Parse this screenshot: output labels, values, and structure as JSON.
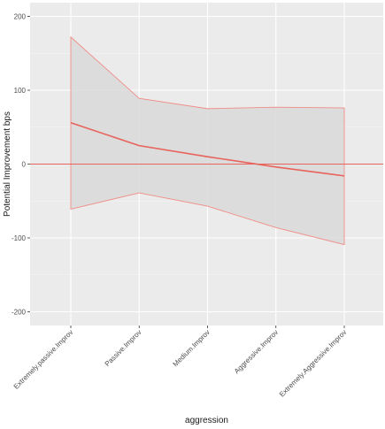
{
  "chart_data": {
    "type": "line",
    "title": "",
    "xlabel": "aggression",
    "ylabel": "Potential Improvement bps",
    "categories": [
      "Extremely.passive.Improv",
      "Passive.Improv",
      "Medium.Improv",
      "Aggressive.Improv",
      "Extremely.Aggressive.Improv"
    ],
    "series": [
      {
        "values": [
          56,
          25,
          10,
          -4,
          -16
        ]
      }
    ],
    "ribbon": {
      "upper": [
        172,
        89,
        75,
        77,
        76
      ],
      "lower": [
        -61,
        -39,
        -57,
        -86,
        -109
      ]
    },
    "hline": 0,
    "ylim": [
      -220,
      220
    ],
    "yticks": [
      -200,
      -100,
      0,
      100,
      200
    ],
    "grid": true,
    "colors": {
      "line": "#e8635b",
      "ribbon_fill": "#d9d9d9",
      "ribbon_edge": "#f08c86",
      "panel": "#ebebeb",
      "grid_major": "#ffffff",
      "grid_minor": "#f4f4f4"
    }
  }
}
